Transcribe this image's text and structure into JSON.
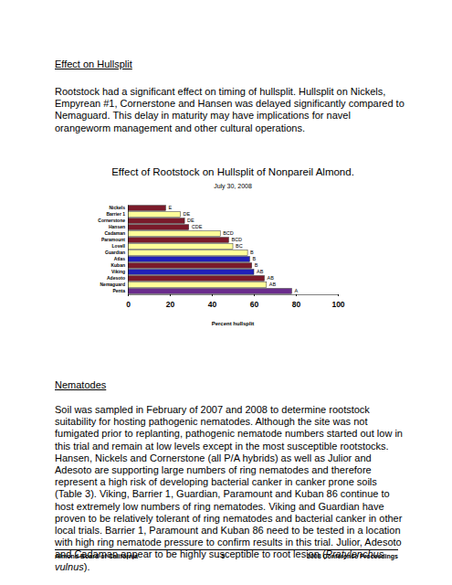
{
  "document": {
    "heading1": "Effect on Hullsplit",
    "paragraph1": "Rootstock had a significant effect on timing of hullsplit.  Hullsplit on Nickels, Empyrean #1, Cornerstone and Hansen was delayed significantly compared to Nemaguard.  This delay in maturity may have implications for navel orangeworm management and other cultural operations.",
    "heading2": "Nematodes",
    "paragraph2": {
      "before": "Soil was sampled in February of 2007 and 2008 to determine rootstock suitability for hosting pathogenic nematodes.  Although the site was not fumigated prior to replanting, pathogenic nematode numbers started out low in this trial and remain at low levels except in the most susceptible rootstocks.  Hansen, Nickels and Cornerstone (all P/A hybrids) as well as Julior and Adesoto are supporting large numbers of ring nematodes and therefore represent a high risk of developing bacterial canker in canker prone soils (Table 3).  Viking, Barrier 1, Guardian, Paramount and Kuban 86 continue to host extremely low numbers of ring nematodes.  Viking and Guardian have proven to be relatively tolerant of ring nematodes and bacterial canker in other local trials.  Barrier 1, Paramount and Kuban 86 need to be tested in a location with high ring nematode pressure to confirm results in this trial.  Julior, Adesoto and Cadaman appear to be highly susceptible to root lesion (",
      "italic": "Pratylenchus vulnus",
      "after": ")."
    },
    "footer": {
      "left": "Almond Board of California",
      "center": "- 5 -",
      "right": "2008 Conference Proceedings"
    }
  },
  "chart_data": {
    "type": "bar",
    "orientation": "horizontal",
    "title": "Effect of Rootstock on Hullsplit of Nonpareil Almond.",
    "subtitle": "July 30, 2008",
    "xlabel": "Percent hullsplit",
    "categories": [
      "Nickels",
      "Barrier 1",
      "Cornerstone",
      "Hansen",
      "Cadaman",
      "Paramount",
      "Lovell",
      "Guardian",
      "Atlas",
      "Kuban",
      "Viking",
      "Adesoto",
      "Nemaguard",
      "Penta"
    ],
    "values": [
      18,
      25,
      27,
      29,
      44,
      48,
      50,
      57,
      58,
      59,
      60,
      65,
      66,
      78
    ],
    "annotations": [
      "E",
      "DE",
      "DE",
      "CDE",
      "BCD",
      "BCD",
      "BC",
      "B",
      "B",
      "B",
      "AB",
      "AB",
      "AB",
      "A"
    ],
    "colors": [
      "#7a1a2a",
      "#ffff99",
      "#7a1a2a",
      "#7a1a2a",
      "#ffff99",
      "#7a1a2a",
      "#ffff99",
      "#ffff99",
      "#2020b8",
      "#7a1a2a",
      "#2020b8",
      "#7a1a2a",
      "#ffff99",
      "#6a2c8c"
    ],
    "xlim": [
      0,
      100
    ],
    "xticks": [
      0,
      20,
      40,
      60,
      80,
      100
    ],
    "grid": false
  }
}
